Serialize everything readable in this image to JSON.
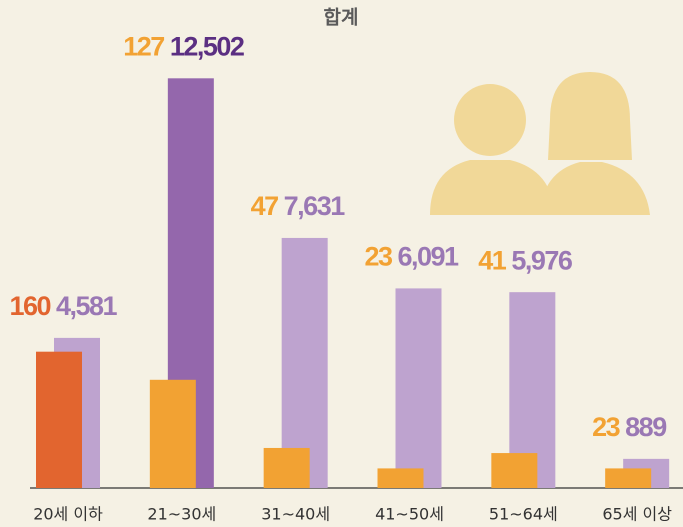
{
  "chart_data": {
    "type": "bar",
    "title": "합계",
    "categories": [
      "20세 이하",
      "21~30세",
      "31~40세",
      "41~50세",
      "51~64세",
      "65세 이상"
    ],
    "series": [
      {
        "axis": "y2",
        "values": [
          160,
          127,
          47,
          23,
          41,
          23
        ],
        "colors": [
          "#e2652f",
          "#f2a233",
          "#f2a233",
          "#f2a233",
          "#f2a233",
          "#f2a233"
        ]
      },
      {
        "values": [
          4581,
          12502,
          7631,
          6091,
          5976,
          889
        ],
        "value_labels": [
          "4,581",
          "12,502",
          "7,631",
          "6,091",
          "5,976",
          "889"
        ],
        "colors": [
          "#bea3cf",
          "#9467ac",
          "#bea3cf",
          "#bea3cf",
          "#bea3cf",
          "#bea3cf"
        ],
        "label_colors": [
          "#9a78b4",
          "#5b2f82",
          "#9a78b4",
          "#9a78b4",
          "#9a78b4",
          "#9a78b4"
        ]
      }
    ],
    "ylim": [
      0,
      13000
    ],
    "y2lim": [
      0,
      500
    ]
  }
}
